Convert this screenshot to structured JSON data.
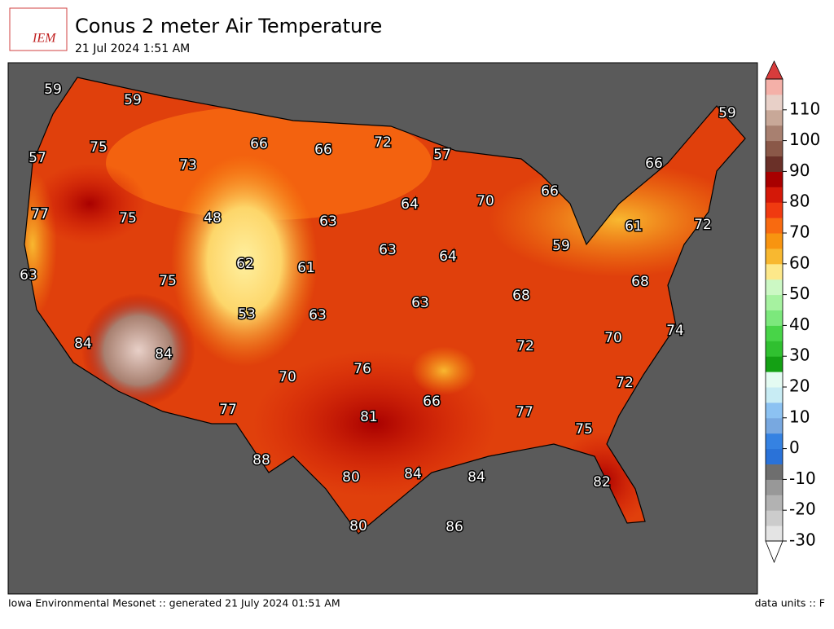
{
  "header": {
    "logo": "IEM",
    "title": "Conus 2 meter Air Temperature",
    "subtitle": "21 Jul 2024 1:51 AM"
  },
  "map_labels": [
    59,
    59,
    57,
    75,
    73,
    66,
    66,
    72,
    57,
    59,
    66,
    77,
    75,
    48,
    63,
    64,
    70,
    66,
    61,
    72,
    63,
    62,
    61,
    63,
    64,
    59,
    75,
    53,
    63,
    63,
    68,
    68,
    84,
    84,
    70,
    76,
    72,
    70,
    74,
    66,
    77,
    81,
    77,
    72,
    75,
    88,
    80,
    84,
    84,
    82,
    80,
    86
  ],
  "colorbar": {
    "lim": [
      -30,
      120
    ],
    "ticks": [
      -30,
      -20,
      -10,
      0,
      10,
      20,
      30,
      40,
      50,
      60,
      70,
      80,
      90,
      100,
      110
    ],
    "colors": [
      "#e4e4e4",
      "#cccccc",
      "#b2b2b2",
      "#989898",
      "#6e6e6e",
      "#2a72d8",
      "#3582e2",
      "#78a8e0",
      "#8cc2f2",
      "#c8ecf4",
      "#e4fbf2",
      "#14a014",
      "#30c030",
      "#48d448",
      "#7ce87c",
      "#a6f2a0",
      "#ccf8c4",
      "#fde88a",
      "#f8b830",
      "#f89410",
      "#f86a10",
      "#f03a10",
      "#d41808",
      "#a80000",
      "#6a3028",
      "#8a5848",
      "#a88070",
      "#c8a898",
      "#e8d0c8",
      "#f4b0a8"
    ],
    "over_color": "#d83c3c",
    "under_color": "#ffffff"
  },
  "footer": {
    "left": "Iowa Environmental Mesonet :: generated 21 July 2024 01:51 AM",
    "right": "data units :: F"
  }
}
